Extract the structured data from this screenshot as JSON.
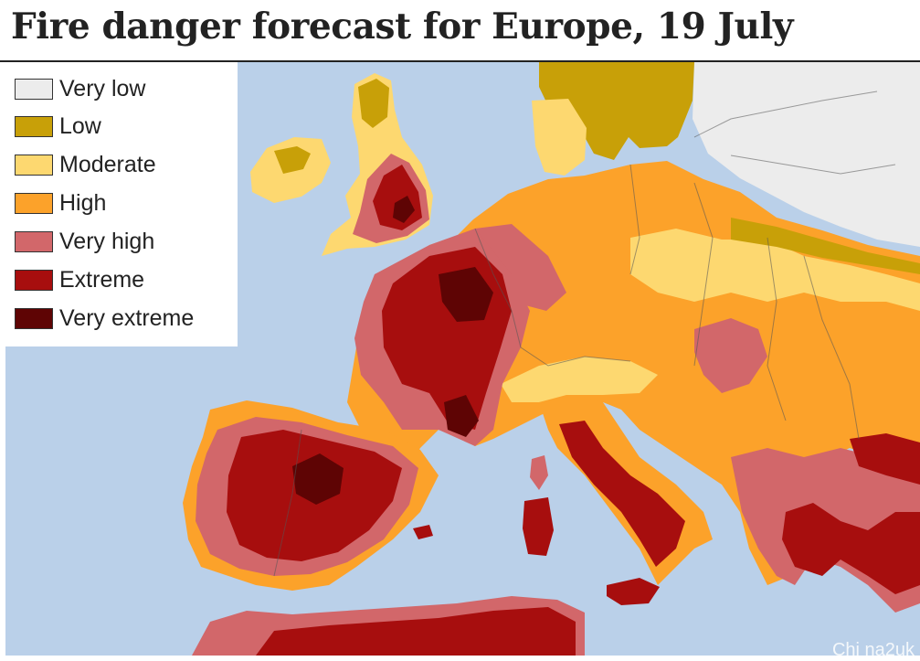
{
  "title": "Fire danger forecast for Europe, 19 July",
  "legend": [
    {
      "label": "Very low",
      "color": "#ececec"
    },
    {
      "label": "Low",
      "color": "#c8a008"
    },
    {
      "label": "Moderate",
      "color": "#fdd870"
    },
    {
      "label": "High",
      "color": "#fca22a"
    },
    {
      "label": "Very high",
      "color": "#d2676a"
    },
    {
      "label": "Extreme",
      "color": "#a70e0e"
    },
    {
      "label": "Very extreme",
      "color": "#5e0404"
    }
  ],
  "colors": {
    "sea": "#bad0e9",
    "land_no_data": "#ececec",
    "borders": "#555555"
  },
  "watermark": "Chi na2uk"
}
